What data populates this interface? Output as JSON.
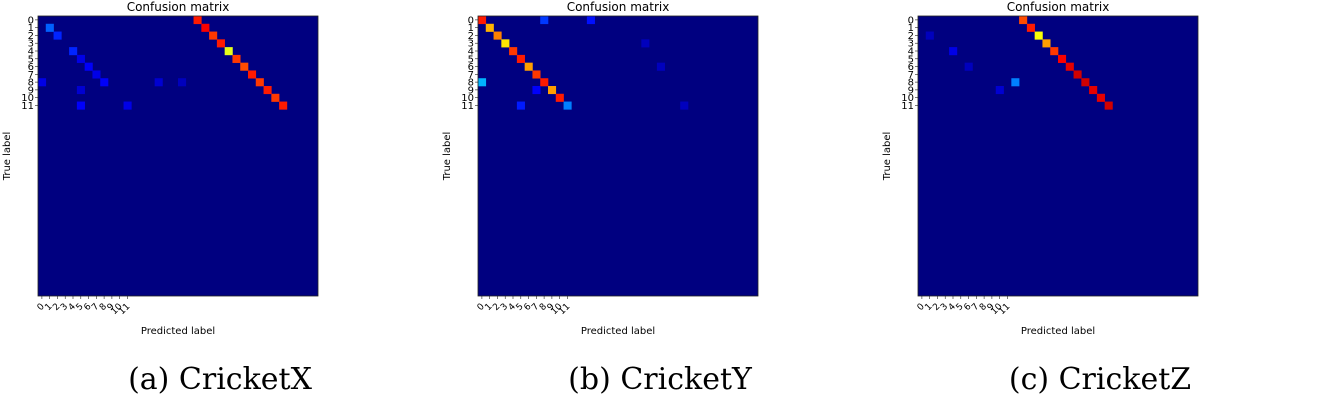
{
  "chart_data": [
    {
      "type": "heatmap",
      "title": "Confusion matrix",
      "xlabel": "Predicted label",
      "ylabel": "True label",
      "caption": "(a) CricketX",
      "x_tick_labels": [
        "0",
        "1",
        "2",
        "3",
        "4",
        "5",
        "6",
        "7",
        "8",
        "9",
        "10",
        "11"
      ],
      "y_tick_labels": [
        "0",
        "1",
        "2",
        "3",
        "4",
        "5",
        "6",
        "7",
        "8",
        "9",
        "10",
        "11"
      ],
      "grid_size": 36,
      "background_value": 0.0,
      "cells": [
        {
          "row": 0,
          "col": 20,
          "value": 0.85
        },
        {
          "row": 1,
          "col": 21,
          "value": 0.88
        },
        {
          "row": 2,
          "col": 22,
          "value": 0.82
        },
        {
          "row": 3,
          "col": 23,
          "value": 0.85
        },
        {
          "row": 4,
          "col": 24,
          "value": 0.6
        },
        {
          "row": 5,
          "col": 25,
          "value": 0.82
        },
        {
          "row": 6,
          "col": 26,
          "value": 0.8
        },
        {
          "row": 7,
          "col": 27,
          "value": 0.85
        },
        {
          "row": 8,
          "col": 28,
          "value": 0.82
        },
        {
          "row": 9,
          "col": 29,
          "value": 0.85
        },
        {
          "row": 10,
          "col": 30,
          "value": 0.82
        },
        {
          "row": 11,
          "col": 31,
          "value": 0.85
        },
        {
          "row": 1,
          "col": 1,
          "value": 0.22
        },
        {
          "row": 2,
          "col": 2,
          "value": 0.16
        },
        {
          "row": 4,
          "col": 4,
          "value": 0.16
        },
        {
          "row": 5,
          "col": 5,
          "value": 0.1
        },
        {
          "row": 6,
          "col": 6,
          "value": 0.12
        },
        {
          "row": 7,
          "col": 7,
          "value": 0.1
        },
        {
          "row": 8,
          "col": 8,
          "value": 0.12
        },
        {
          "row": 8,
          "col": 0,
          "value": 0.1
        },
        {
          "row": 9,
          "col": 5,
          "value": 0.08
        },
        {
          "row": 11,
          "col": 5,
          "value": 0.12
        },
        {
          "row": 11,
          "col": 11,
          "value": 0.1
        },
        {
          "row": 8,
          "col": 15,
          "value": 0.08
        },
        {
          "row": 8,
          "col": 18,
          "value": 0.06
        }
      ]
    },
    {
      "type": "heatmap",
      "title": "Confusion matrix",
      "xlabel": "Predicted label",
      "ylabel": "True label",
      "caption": "(b) CricketY",
      "x_tick_labels": [
        "0",
        "1",
        "2",
        "3",
        "4",
        "5",
        "6",
        "7",
        "8",
        "9",
        "10",
        "11"
      ],
      "y_tick_labels": [
        "0",
        "1",
        "2",
        "3",
        "4",
        "5",
        "6",
        "7",
        "8",
        "9",
        "10",
        "11"
      ],
      "grid_size": 36,
      "background_value": 0.0,
      "cells": [
        {
          "row": 0,
          "col": 0,
          "value": 0.85
        },
        {
          "row": 1,
          "col": 1,
          "value": 0.7
        },
        {
          "row": 2,
          "col": 2,
          "value": 0.75
        },
        {
          "row": 3,
          "col": 3,
          "value": 0.65
        },
        {
          "row": 4,
          "col": 4,
          "value": 0.82
        },
        {
          "row": 5,
          "col": 5,
          "value": 0.85
        },
        {
          "row": 6,
          "col": 6,
          "value": 0.72
        },
        {
          "row": 7,
          "col": 7,
          "value": 0.82
        },
        {
          "row": 8,
          "col": 8,
          "value": 0.85
        },
        {
          "row": 9,
          "col": 9,
          "value": 0.72
        },
        {
          "row": 10,
          "col": 10,
          "value": 0.85
        },
        {
          "row": 11,
          "col": 11,
          "value": 0.25
        },
        {
          "row": 0,
          "col": 8,
          "value": 0.18
        },
        {
          "row": 0,
          "col": 14,
          "value": 0.14
        },
        {
          "row": 8,
          "col": 0,
          "value": 0.3
        },
        {
          "row": 9,
          "col": 7,
          "value": 0.12
        },
        {
          "row": 11,
          "col": 5,
          "value": 0.15
        },
        {
          "row": 3,
          "col": 21,
          "value": 0.06
        },
        {
          "row": 6,
          "col": 23,
          "value": 0.06
        },
        {
          "row": 11,
          "col": 26,
          "value": 0.06
        }
      ]
    },
    {
      "type": "heatmap",
      "title": "Confusion matrix",
      "xlabel": "Predicted label",
      "ylabel": "True label",
      "caption": "(c) CricketZ",
      "x_tick_labels": [
        "0",
        "1",
        "2",
        "3",
        "4",
        "5",
        "6",
        "7",
        "8",
        "9",
        "10",
        "11"
      ],
      "y_tick_labels": [
        "0",
        "1",
        "2",
        "3",
        "4",
        "5",
        "6",
        "7",
        "8",
        "9",
        "10",
        "11"
      ],
      "grid_size": 36,
      "background_value": 0.0,
      "cells": [
        {
          "row": 0,
          "col": 13,
          "value": 0.8
        },
        {
          "row": 1,
          "col": 14,
          "value": 0.85
        },
        {
          "row": 2,
          "col": 15,
          "value": 0.62
        },
        {
          "row": 3,
          "col": 16,
          "value": 0.72
        },
        {
          "row": 4,
          "col": 17,
          "value": 0.82
        },
        {
          "row": 5,
          "col": 18,
          "value": 0.88
        },
        {
          "row": 6,
          "col": 19,
          "value": 0.9
        },
        {
          "row": 7,
          "col": 20,
          "value": 0.92
        },
        {
          "row": 8,
          "col": 21,
          "value": 0.92
        },
        {
          "row": 9,
          "col": 22,
          "value": 0.9
        },
        {
          "row": 10,
          "col": 23,
          "value": 0.9
        },
        {
          "row": 11,
          "col": 24,
          "value": 0.92
        },
        {
          "row": 8,
          "col": 12,
          "value": 0.25
        },
        {
          "row": 4,
          "col": 4,
          "value": 0.1
        },
        {
          "row": 6,
          "col": 6,
          "value": 0.06
        },
        {
          "row": 9,
          "col": 10,
          "value": 0.08
        },
        {
          "row": 2,
          "col": 1,
          "value": 0.06
        }
      ]
    }
  ]
}
